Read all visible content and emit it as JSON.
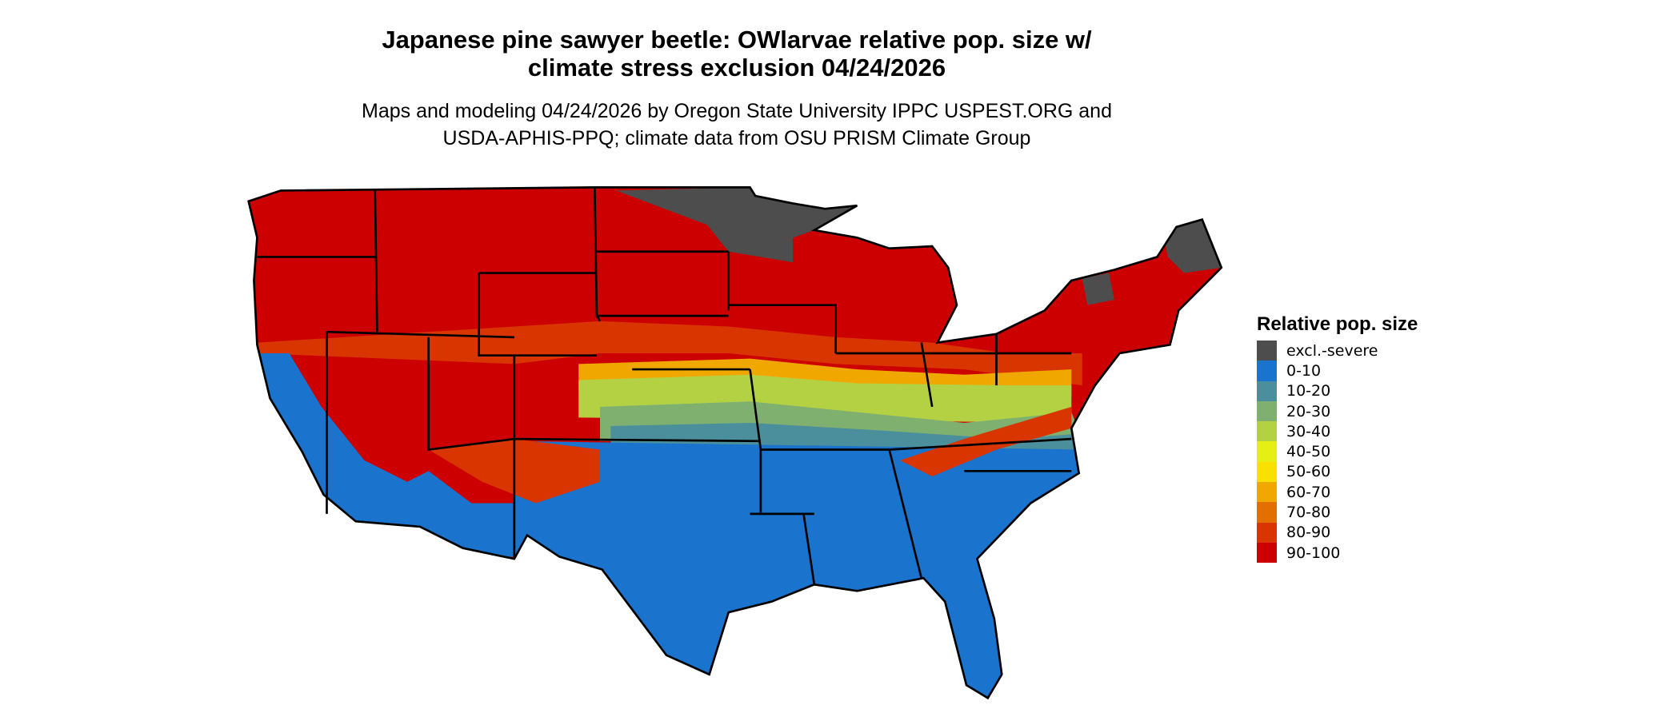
{
  "title_line1": "Japanese pine sawyer beetle: OWlarvae relative pop. size w/",
  "title_line2": "climate stress exclusion 04/24/2026",
  "subtitle_line1": "Maps and modeling 04/24/2026 by Oregon State University IPPC USPEST.ORG and",
  "subtitle_line2": "USDA-APHIS-PPQ; climate data from OSU PRISM Climate Group",
  "chart_data": {
    "type": "map",
    "region": "Contiguous United States",
    "legend": {
      "title": "Relative pop. size",
      "placement": "right",
      "items": [
        {
          "label": "excl.-severe",
          "color": "#4d4d4d"
        },
        {
          "label": "0-10",
          "color": "#1a73cc"
        },
        {
          "label": "10-20",
          "color": "#4a8f9b"
        },
        {
          "label": "20-30",
          "color": "#7fb070"
        },
        {
          "label": "30-40",
          "color": "#b4d144"
        },
        {
          "label": "40-50",
          "color": "#e6ef14"
        },
        {
          "label": "50-60",
          "color": "#f8e000"
        },
        {
          "label": "60-70",
          "color": "#f0a800"
        },
        {
          "label": "70-80",
          "color": "#e36f00"
        },
        {
          "label": "80-90",
          "color": "#d93500"
        },
        {
          "label": "90-100",
          "color": "#cc0000"
        }
      ]
    }
  }
}
